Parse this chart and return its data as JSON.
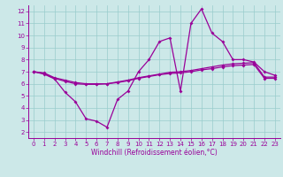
{
  "x": [
    0,
    1,
    2,
    3,
    4,
    5,
    6,
    7,
    8,
    9,
    10,
    11,
    12,
    13,
    14,
    15,
    16,
    17,
    18,
    19,
    20,
    21,
    22,
    23
  ],
  "line_main": [
    7.0,
    6.8,
    6.4,
    5.3,
    4.5,
    3.1,
    2.9,
    2.4,
    4.7,
    5.4,
    7.0,
    8.0,
    9.5,
    9.8,
    5.4,
    11.0,
    12.2,
    10.2,
    9.5,
    8.0,
    8.0,
    7.8,
    7.0,
    6.7
  ],
  "line_smooth": [
    7.0,
    6.9,
    6.5,
    6.3,
    6.1,
    6.0,
    6.0,
    6.0,
    6.15,
    6.3,
    6.5,
    6.65,
    6.8,
    6.95,
    7.0,
    7.1,
    7.25,
    7.4,
    7.55,
    7.65,
    7.7,
    7.75,
    6.55,
    6.55
  ],
  "line_mid": [
    7.0,
    6.85,
    6.45,
    6.2,
    6.0,
    5.95,
    5.95,
    6.0,
    6.1,
    6.25,
    6.45,
    6.6,
    6.75,
    6.85,
    6.9,
    7.0,
    7.15,
    7.25,
    7.4,
    7.5,
    7.55,
    7.6,
    6.45,
    6.45
  ],
  "line_color": "#990099",
  "bg_color": "#cce8e8",
  "grid_color": "#99cccc",
  "xlim": [
    -0.5,
    23.5
  ],
  "ylim": [
    1.5,
    12.5
  ],
  "yticks": [
    2,
    3,
    4,
    5,
    6,
    7,
    8,
    9,
    10,
    11,
    12
  ],
  "xticks": [
    0,
    1,
    2,
    3,
    4,
    5,
    6,
    7,
    8,
    9,
    10,
    11,
    12,
    13,
    14,
    15,
    16,
    17,
    18,
    19,
    20,
    21,
    22,
    23
  ],
  "xlabel": "Windchill (Refroidissement éolien,°C)",
  "marker": "D",
  "marker_size": 2.0,
  "line_width": 0.9,
  "tick_fontsize": 5.0,
  "label_fontsize": 5.5
}
